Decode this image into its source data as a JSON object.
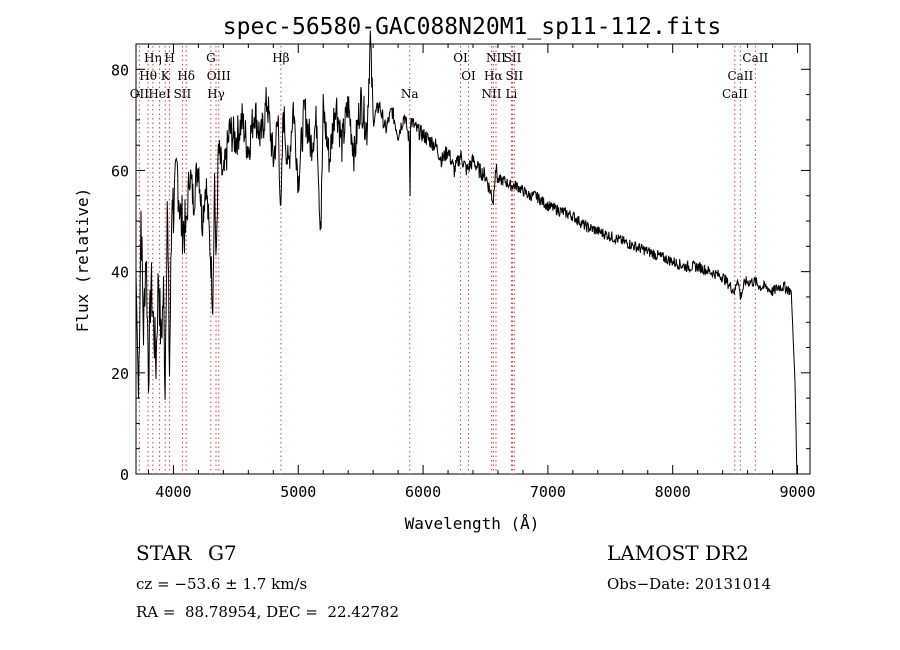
{
  "chart_data": {
    "type": "line",
    "title": "spec-56580-GAC088N20M1_sp11-112.fits",
    "xlabel": "Wavelength (Å)",
    "ylabel": "Flux (relative)",
    "xlim": [
      3700,
      9100
    ],
    "ylim": [
      0,
      85
    ],
    "xticks": [
      4000,
      5000,
      6000,
      7000,
      8000,
      9000
    ],
    "yticks": [
      0,
      20,
      40,
      60,
      80
    ],
    "grid": false,
    "series": [
      {
        "values_note_x": "Å",
        "x": [
          3700,
          3720,
          3740,
          3760,
          3780,
          3800,
          3820,
          3840,
          3860,
          3880,
          3900,
          3920,
          3933,
          3950,
          3968,
          3990,
          4000,
          4030,
          4060,
          4101,
          4130,
          4160,
          4200,
          4230,
          4260,
          4300,
          4315,
          4330,
          4340,
          4360,
          4400,
          4450,
          4500,
          4550,
          4600,
          4650,
          4700,
          4750,
          4800,
          4840,
          4861,
          4880,
          4920,
          4960,
          5000,
          5050,
          5100,
          5150,
          5172,
          5183,
          5200,
          5250,
          5300,
          5350,
          5400,
          5450,
          5500,
          5550,
          5577,
          5600,
          5650,
          5700,
          5750,
          5800,
          5850,
          5890,
          5896,
          5900,
          5950,
          6000,
          6050,
          6100,
          6150,
          6200,
          6250,
          6300,
          6350,
          6400,
          6450,
          6500,
          6563,
          6580,
          6600,
          6650,
          6700,
          6750,
          6800,
          6850,
          6900,
          6950,
          7000,
          7100,
          7200,
          7300,
          7400,
          7500,
          7600,
          7700,
          7800,
          7900,
          8000,
          8100,
          8200,
          8300,
          8400,
          8498,
          8520,
          8542,
          8580,
          8662,
          8700,
          8750,
          8800,
          8850,
          8900,
          8950,
          8980,
          8995
        ],
        "y": [
          40,
          15,
          52,
          28,
          45,
          20,
          38,
          30,
          22,
          40,
          26,
          36,
          18,
          55,
          20,
          57,
          52,
          60,
          50,
          48,
          60,
          54,
          62,
          50,
          58,
          42,
          34,
          60,
          40,
          64,
          58,
          68,
          66,
          70,
          64,
          72,
          66,
          74,
          62,
          70,
          50,
          72,
          60,
          73,
          58,
          72,
          65,
          70,
          52,
          50,
          72,
          62,
          74,
          65,
          73,
          63,
          74,
          68,
          86,
          70,
          73,
          68,
          72,
          67,
          71,
          66,
          55,
          70,
          68,
          67,
          66,
          65,
          62,
          64,
          60,
          63,
          60,
          62,
          60,
          59,
          54,
          61,
          58,
          58,
          57,
          57,
          56,
          55,
          55,
          54,
          53,
          52,
          51,
          49,
          48,
          47,
          46,
          45,
          44,
          43,
          42,
          41,
          41,
          40,
          39,
          36,
          39,
          35,
          38,
          38,
          37,
          37,
          36,
          37,
          37,
          36,
          18,
          0
        ]
      }
    ],
    "annotations": [
      {
        "label": "OII",
        "x": 3727,
        "row": 3
      },
      {
        "label": "Hθ",
        "x": 3797,
        "row": 2
      },
      {
        "label": "Hη",
        "x": 3835,
        "row": 1
      },
      {
        "label": "HeI",
        "x": 3889,
        "row": 3
      },
      {
        "label": "K",
        "x": 3934,
        "row": 2
      },
      {
        "label": "H",
        "x": 3969,
        "row": 1
      },
      {
        "label": "SII",
        "x": 4072,
        "row": 3
      },
      {
        "label": "Hδ",
        "x": 4102,
        "row": 2
      },
      {
        "label": "G",
        "x": 4300,
        "row": 1
      },
      {
        "label": "OIII",
        "x": 4363,
        "row": 2
      },
      {
        "label": "Hγ",
        "x": 4341,
        "row": 3
      },
      {
        "label": "Hβ",
        "x": 4861,
        "row": 1
      },
      {
        "label": "Na",
        "x": 5893,
        "row": 3
      },
      {
        "label": "OI",
        "x": 6300,
        "row": 1
      },
      {
        "label": "OI",
        "x": 6364,
        "row": 2
      },
      {
        "label": "NII",
        "x": 6548,
        "row": 3
      },
      {
        "label": "Hα",
        "x": 6563,
        "row": 2
      },
      {
        "label": "NII",
        "x": 6584,
        "row": 1
      },
      {
        "label": "SII",
        "x": 6717,
        "row": 1
      },
      {
        "label": "SII",
        "x": 6731,
        "row": 2
      },
      {
        "label": "Li",
        "x": 6708,
        "row": 3
      },
      {
        "label": "CaII",
        "x": 8498,
        "row": 3
      },
      {
        "label": "CaII",
        "x": 8542,
        "row": 2
      },
      {
        "label": "CaII",
        "x": 8662,
        "row": 1
      }
    ]
  },
  "info": {
    "object_class": "STAR",
    "subclass": "G7",
    "survey": "LAMOST DR2",
    "redshift_line": "cz = −53.6 ± 1.7 km/s",
    "obs_date_line": "Obs−Date: 20131014",
    "coords_line": "RA =  88.78954, DEC =  22.42782"
  }
}
